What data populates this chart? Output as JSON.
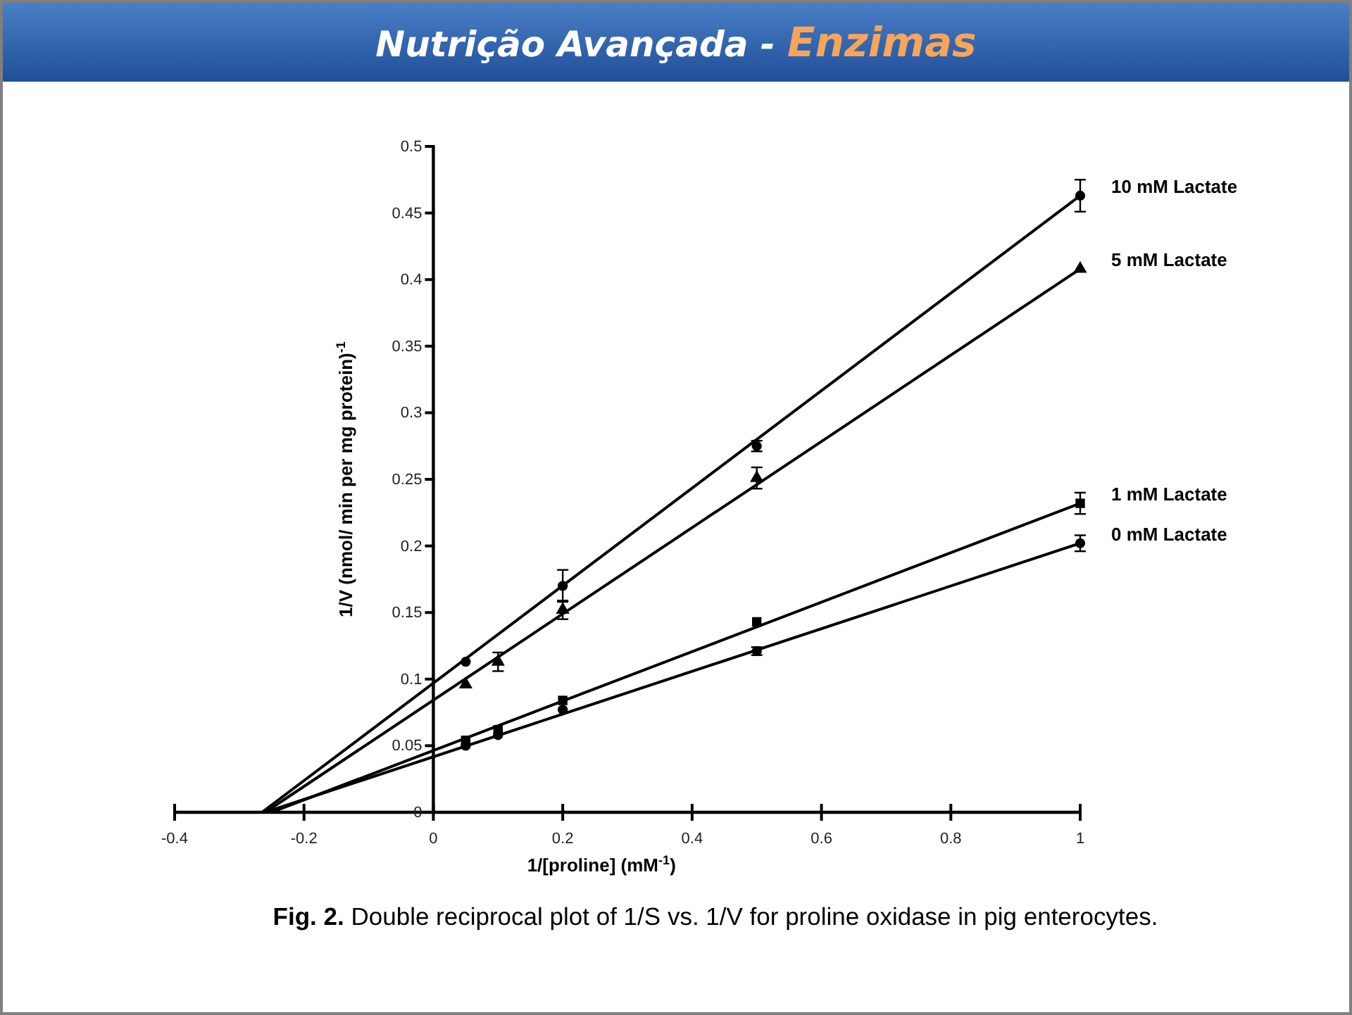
{
  "chart_data": {
    "type": "scatter",
    "title": "Nutrição Avançada - Enzimas",
    "xlabel": "1/[proline] (mM$^{-1}$)",
    "ylabel": "1/V (nmol/ min per mg protein)$^{-1}$",
    "annotations": [
      "Fig. 2. Double reciprocal plot of 1/S vs. 1/V for proline oxidase in pig enterocytes."
    ],
    "xlim": [
      -0.4,
      1
    ],
    "xticks": [
      -0.4,
      -0.2,
      0,
      0.2,
      0.4,
      0.6,
      0.8,
      1
    ],
    "ylim": [
      0,
      0.5
    ],
    "yticks": [
      0,
      0.05,
      0.1,
      0.15,
      0.2,
      0.25,
      0.3,
      0.35,
      0.4,
      0.45,
      0.5
    ],
    "grid": false,
    "legend": false,
    "series": [
      {
        "name": "10 mM Lactate",
        "marker": "circle",
        "color": "#000000",
        "x": [
          0.05,
          0.2,
          0.5,
          1
        ],
        "values": [
          0.113,
          0.17,
          0.275,
          0.463
        ],
        "errors": [
          null,
          0.012,
          0.004,
          0.012
        ]
      },
      {
        "name": "5 mM Lactate",
        "marker": "triangle",
        "color": "#000000",
        "x": [
          0.05,
          0.1,
          0.2,
          0.5,
          1
        ],
        "values": [
          0.096,
          0.113,
          0.152,
          0.251,
          0.408
        ],
        "errors": [
          null,
          0.007,
          0.007,
          0.008,
          null
        ]
      },
      {
        "name": "1 mM Lactate",
        "marker": "square",
        "color": "#000000",
        "x": [
          0.05,
          0.1,
          0.2,
          0.5,
          1
        ],
        "values": [
          0.054,
          0.062,
          0.084,
          0.143,
          0.232
        ],
        "errors": [
          null,
          null,
          null,
          null,
          0.008
        ]
      },
      {
        "name": "0 mM Lactate",
        "marker": "circle",
        "color": "#000000",
        "x": [
          0.05,
          0.1,
          0.2,
          0.5,
          1
        ],
        "values": [
          0.05,
          0.058,
          0.077,
          0.121,
          0.202
        ],
        "errors": [
          null,
          null,
          null,
          0.003,
          0.006
        ]
      },
      {
        "type": "line",
        "line_style": "solid",
        "color": "#000000",
        "x": [
          -0.265,
          1
        ],
        "values": [
          0,
          0.463
        ]
      },
      {
        "type": "line",
        "line_style": "solid",
        "color": "#000000",
        "x": [
          -0.26,
          1
        ],
        "values": [
          0,
          0.408
        ]
      },
      {
        "type": "line",
        "line_style": "solid",
        "color": "#000000",
        "x": [
          -0.25,
          1
        ],
        "values": [
          0,
          0.232
        ]
      },
      {
        "type": "line",
        "line_style": "solid",
        "color": "#000000",
        "x": [
          -0.26,
          1
        ],
        "values": [
          0,
          0.202
        ]
      }
    ]
  }
}
